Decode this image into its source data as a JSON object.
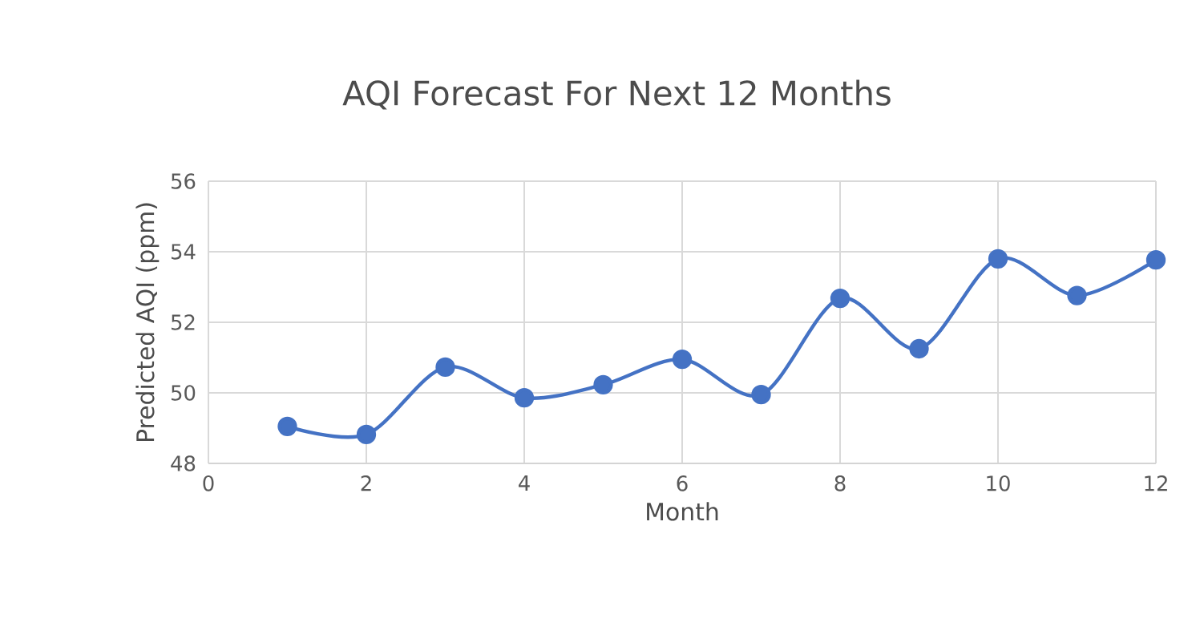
{
  "chart_data": {
    "type": "line",
    "title": "AQI Forecast For Next 12 Months",
    "xlabel": "Month",
    "ylabel": "Predicted AQI (ppm)",
    "x": [
      1,
      2,
      3,
      4,
      5,
      6,
      7,
      8,
      9,
      10,
      11,
      12
    ],
    "series": [
      {
        "color": "#4472c4",
        "values": [
          49.05,
          48.82,
          50.73,
          49.86,
          50.23,
          50.95,
          49.95,
          52.68,
          51.25,
          53.8,
          52.76,
          53.77
        ]
      }
    ],
    "xlim": [
      0,
      12
    ],
    "ylim": [
      48,
      56
    ],
    "xticks": [
      0,
      2,
      4,
      6,
      8,
      10,
      12
    ],
    "yticks": [
      48,
      50,
      52,
      54,
      56
    ],
    "grid": true,
    "marker": "circle",
    "line_style": "solid"
  }
}
